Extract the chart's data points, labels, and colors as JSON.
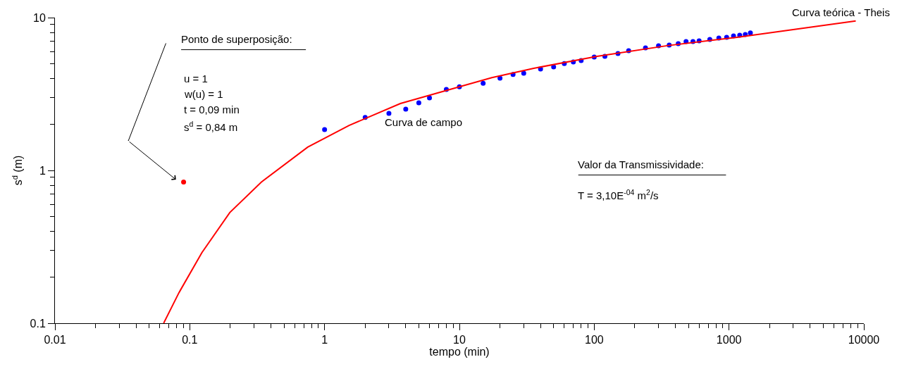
{
  "chart_data": {
    "type": "scatter",
    "xlabel": "tempo (min)",
    "ylabel": "s$^{d}$ (m)",
    "log": "xy",
    "xlim": [
      0.01,
      10000
    ],
    "xticks": [
      0.01,
      0.1,
      1,
      10,
      100,
      1000,
      10000
    ],
    "ylim": [
      0.1,
      10
    ],
    "yticks": [
      0.1,
      1,
      10
    ],
    "legend": false,
    "series": [
      {
        "name": "Curva de campo",
        "color": "#0000ff",
        "marker": "circle",
        "x": [
          1,
          2,
          3,
          4,
          5,
          6,
          8,
          10,
          15,
          20,
          25,
          30,
          40,
          50,
          60,
          70,
          80,
          100,
          120,
          150,
          180,
          240,
          300,
          360,
          420,
          480,
          540,
          600,
          720,
          840,
          960,
          1080,
          1200,
          1320,
          1440
        ],
        "values": [
          1.85,
          2.22,
          2.36,
          2.52,
          2.77,
          2.98,
          3.39,
          3.53,
          3.72,
          4.02,
          4.24,
          4.33,
          4.61,
          4.76,
          5.01,
          5.13,
          5.24,
          5.52,
          5.58,
          5.82,
          6.07,
          6.34,
          6.55,
          6.61,
          6.75,
          6.97,
          6.97,
          7.05,
          7.2,
          7.35,
          7.43,
          7.59,
          7.67,
          7.75,
          7.93
        ]
      },
      {
        "name": "Curva teórica - Theis",
        "color": "#ff0000",
        "type": "line",
        "marker": "none",
        "line_style": "solid",
        "x": [
          0.064,
          0.083,
          0.123,
          0.198,
          0.34,
          0.75,
          1.52,
          3.65,
          7.5,
          17.4,
          35.6,
          105,
          347,
          1148,
          8710
        ],
        "values": [
          0.1,
          0.158,
          0.29,
          0.53,
          0.84,
          1.42,
          1.97,
          2.74,
          3.28,
          4.05,
          4.66,
          5.58,
          6.55,
          7.43,
          9.5
        ]
      },
      {
        "color": "#ff0000",
        "marker": "circle",
        "x": [
          0.09
        ],
        "values": [
          0.84
        ]
      }
    ],
    "annotations": [
      "Ponto de superposição:",
      "u = 1",
      "w(u) = 1",
      "t = 0,09 min",
      "s$^{d}$ = 0,84 m",
      "Valor da Transmissividade:",
      "T = 3,10E$^{-04}$ m$^{2}$/s"
    ]
  }
}
